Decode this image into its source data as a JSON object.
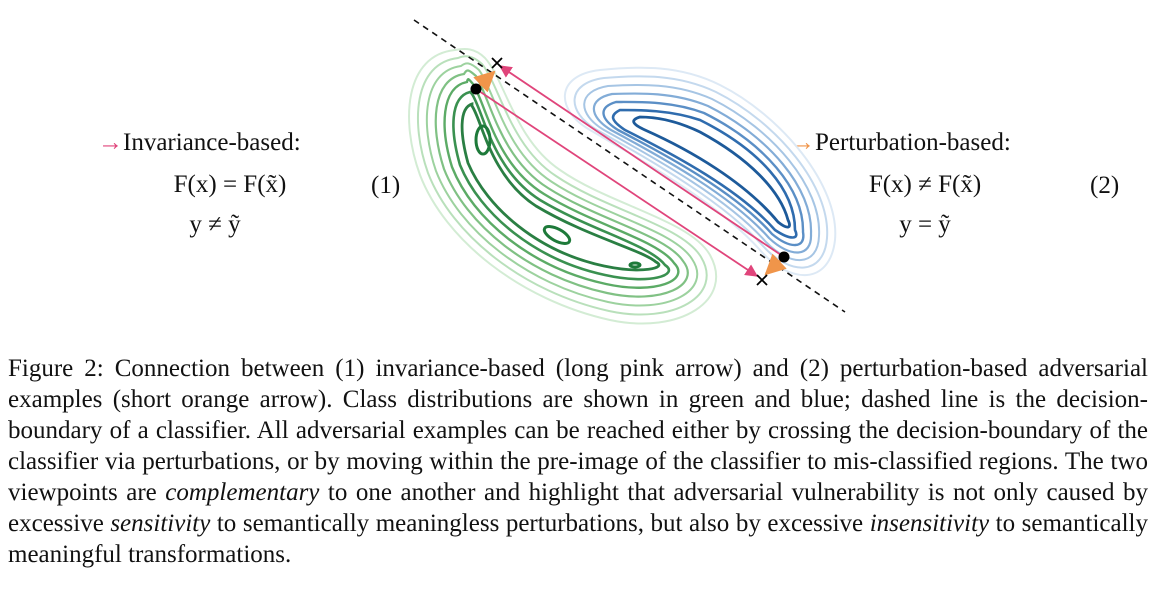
{
  "left_case": {
    "title": "Invariance-based:",
    "eq1": "F(x) = F(x̃)",
    "eq2": "y ≠ ỹ",
    "number": "(1)",
    "arrow_color": "#e0457b"
  },
  "right_case": {
    "title": "Perturbation-based:",
    "eq1": "F(x) ≠ F(x̃)",
    "eq2": "y = ỹ",
    "number": "(2)",
    "arrow_color": "#f0954a"
  },
  "colors": {
    "green_class": "#1e7a3a",
    "blue_class": "#1d5a9a",
    "pink_arrow": "#e0457b",
    "orange_arrow": "#f0954a"
  },
  "caption": {
    "p1": "Figure 2: Connection between (1) invariance-based (long pink arrow) and (2) perturbation-based adversarial examples (short orange arrow). Class distributions are shown in green and blue; dashed line is the decision-boundary of a classifier. All adversarial examples can be reached either by crossing the decision-boundary of the classifier via perturbations, or by moving within the pre-image of the classifier to mis-classified regions. The two viewpoints are ",
    "em1": "complementary",
    "p2": " to one another and highlight that adversarial vulnerability is not only caused by excessive ",
    "em2": "sensitivity",
    "p3": " to semantically meaningless perturbations, but also by excessive ",
    "em3": "insensitivity",
    "p4": " to semantically meaningful transformations."
  }
}
